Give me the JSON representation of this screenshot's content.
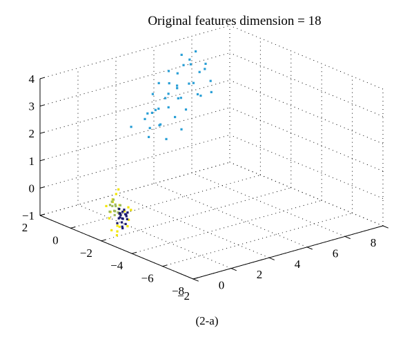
{
  "chart_data": {
    "type": "scatter",
    "projection": "3d",
    "title": "Original features dimension = 18",
    "caption": "(2-a)",
    "xlabel": "",
    "ylabel": "",
    "zlabel": "",
    "xlim": [
      -2,
      8
    ],
    "ylim": [
      -8,
      2
    ],
    "zlim": [
      -1,
      4
    ],
    "x_ticks": [
      "−2",
      "0",
      "2",
      "4",
      "6",
      "8"
    ],
    "y_ticks": [
      "2",
      "0",
      "−2",
      "−4",
      "−6",
      "−8"
    ],
    "z_ticks": [
      "−1",
      "0",
      "1",
      "2",
      "3",
      "4"
    ],
    "grid": true,
    "series": [
      {
        "color": "#2a9fd6",
        "points": [
          [
            2.6,
            0.6,
            1.3
          ],
          [
            3.0,
            0.4,
            1.7
          ],
          [
            3.2,
            0.9,
            2.1
          ],
          [
            3.4,
            0.3,
            2.3
          ],
          [
            3.8,
            0.8,
            2.6
          ],
          [
            4.0,
            1.0,
            2.9
          ],
          [
            4.3,
            0.6,
            2.4
          ],
          [
            4.6,
            1.2,
            3.1
          ],
          [
            4.8,
            0.7,
            2.8
          ],
          [
            5.0,
            1.3,
            3.3
          ],
          [
            5.2,
            0.9,
            2.7
          ],
          [
            5.4,
            1.4,
            3.4
          ],
          [
            5.6,
            1.0,
            3.0
          ],
          [
            5.8,
            1.5,
            3.6
          ],
          [
            6.0,
            1.1,
            3.2
          ],
          [
            3.6,
            1.2,
            2.0
          ],
          [
            4.2,
            1.5,
            2.2
          ],
          [
            4.9,
            1.6,
            2.5
          ],
          [
            5.5,
            0.8,
            2.2
          ],
          [
            3.1,
            1.3,
            1.9
          ],
          [
            2.9,
            0.9,
            1.5
          ],
          [
            3.5,
            1.5,
            1.8
          ],
          [
            4.4,
            0.4,
            2.0
          ],
          [
            5.1,
            0.5,
            2.4
          ],
          [
            6.2,
            1.4,
            2.9
          ],
          [
            4.1,
            1.8,
            2.7
          ],
          [
            3.3,
            0.7,
            1.6
          ],
          [
            4.7,
            1.9,
            3.0
          ],
          [
            5.7,
            1.7,
            3.1
          ],
          [
            2.8,
            1.1,
            1.8
          ],
          [
            3.9,
            0.5,
            1.8
          ],
          [
            4.5,
            1.1,
            2.6
          ],
          [
            5.3,
            1.8,
            3.5
          ],
          [
            6.1,
            0.9,
            2.6
          ],
          [
            3.7,
            1.7,
            2.4
          ],
          [
            4.0,
            0.2,
            1.4
          ],
          [
            5.9,
            0.6,
            2.3
          ],
          [
            2.4,
            1.5,
            1.5
          ],
          [
            4.8,
            1.4,
            2.1
          ],
          [
            3.2,
            0.2,
            1.2
          ]
        ]
      },
      {
        "color": "#f2e600",
        "points": [
          [
            -1.5,
            -2.5,
            0.9
          ],
          [
            -1.2,
            -2.2,
            0.2
          ],
          [
            -1.8,
            -2.8,
            -0.3
          ],
          [
            -1.4,
            -2.0,
            0.4
          ],
          [
            -1.9,
            -2.4,
            -0.1
          ],
          [
            -1.1,
            -2.6,
            -0.5
          ],
          [
            -1.6,
            -2.1,
            0.0
          ],
          [
            -1.3,
            -2.9,
            0.3
          ],
          [
            -1.7,
            -2.3,
            -0.6
          ],
          [
            -1.0,
            -2.7,
            0.1
          ],
          [
            -2.0,
            -2.6,
            0.2
          ],
          [
            -1.5,
            -2.4,
            -0.8
          ],
          [
            -1.3,
            -2.1,
            0.6
          ],
          [
            -1.8,
            -2.5,
            0.5
          ],
          [
            -1.2,
            -2.8,
            -0.2
          ],
          [
            -1.6,
            -2.7,
            -0.4
          ],
          [
            -1.4,
            -2.3,
            -0.7
          ],
          [
            -1.9,
            -2.2,
            0.3
          ],
          [
            -1.1,
            -2.4,
            0.0
          ],
          [
            -1.7,
            -2.9,
            0.1
          ]
        ]
      },
      {
        "color": "#9fba5a",
        "points": [
          [
            -1.6,
            -2.4,
            0.1
          ],
          [
            -1.5,
            -2.3,
            0.3
          ],
          [
            -1.7,
            -2.5,
            0.0
          ],
          [
            -1.4,
            -2.2,
            0.2
          ],
          [
            -1.6,
            -2.2,
            0.4
          ],
          [
            -1.5,
            -2.5,
            0.2
          ],
          [
            -1.8,
            -2.3,
            0.1
          ],
          [
            -1.4,
            -2.4,
            0.0
          ],
          [
            -1.7,
            -2.2,
            0.3
          ],
          [
            -1.6,
            -2.6,
            0.1
          ],
          [
            -1.5,
            -2.1,
            0.2
          ],
          [
            -1.3,
            -2.3,
            0.1
          ],
          [
            -1.8,
            -2.6,
            0.2
          ],
          [
            -1.6,
            -2.3,
            0.5
          ],
          [
            -1.4,
            -2.5,
            0.3
          ]
        ]
      },
      {
        "color": "#1b1a6e",
        "points": [
          [
            -1.3,
            -2.5,
            -0.2
          ],
          [
            -1.2,
            -2.4,
            0.0
          ],
          [
            -1.4,
            -2.6,
            -0.3
          ],
          [
            -1.1,
            -2.5,
            -0.1
          ],
          [
            -1.3,
            -2.3,
            0.1
          ],
          [
            -1.2,
            -2.6,
            -0.4
          ],
          [
            -1.4,
            -2.4,
            -0.2
          ],
          [
            -1.1,
            -2.3,
            -0.3
          ],
          [
            -1.3,
            -2.7,
            0.0
          ],
          [
            -1.2,
            -2.2,
            -0.1
          ],
          [
            -1.5,
            -2.6,
            -0.1
          ],
          [
            -1.0,
            -2.4,
            -0.2
          ],
          [
            -1.3,
            -2.5,
            -0.5
          ],
          [
            -1.2,
            -2.5,
            0.1
          ],
          [
            -1.4,
            -2.3,
            -0.4
          ],
          [
            -1.1,
            -2.6,
            0.0
          ],
          [
            -1.2,
            -2.4,
            -0.6
          ],
          [
            -1.3,
            -2.4,
            -0.1
          ],
          [
            -1.4,
            -2.5,
            0.0
          ],
          [
            -1.2,
            -2.7,
            -0.2
          ]
        ]
      }
    ]
  }
}
